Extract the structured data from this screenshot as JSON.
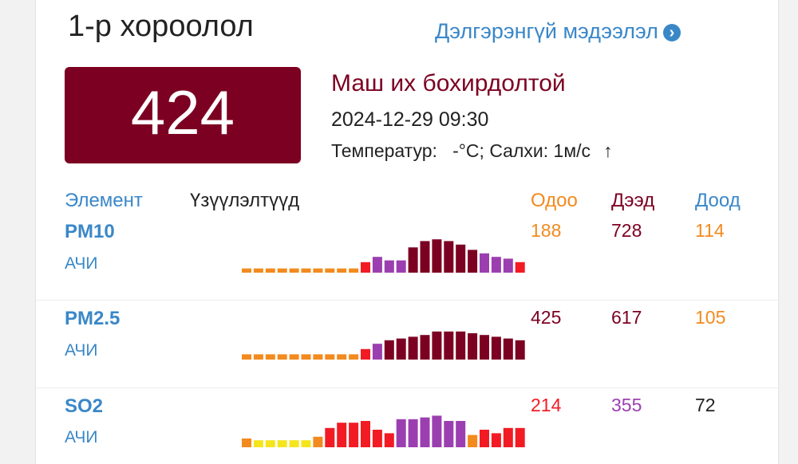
{
  "station": {
    "name": "1-р хороолол",
    "more_label": "Дэлгэрэнгүй мэдээлэл",
    "more_icon": "chevron-right-circle-icon"
  },
  "aqi": {
    "value": "424",
    "status": "Маш их бохирдолтой",
    "timestamp": "2024-12-29 09:30",
    "weather": "Температур:   -°C; Салхи: 1м/с",
    "wind_icon": "arrow-up-icon"
  },
  "table": {
    "headers": {
      "element": "Элемент",
      "measurements": "Үзүүлэлтүүд",
      "current": "Одоо",
      "max": "Дээд",
      "min": "Доод"
    },
    "rows": [
      {
        "name": "PM10",
        "sub": "АЧИ",
        "current": "188",
        "max": "728",
        "min": "114"
      },
      {
        "name": "PM2.5",
        "sub": "АЧИ",
        "current": "425",
        "max": "617",
        "min": "105"
      },
      {
        "name": "SO2",
        "sub": "АЧИ",
        "current": "214",
        "max": "355",
        "min": "72"
      }
    ]
  },
  "colors": {
    "hazardous": "#7c0021",
    "very_unhealthy": "#9b3fb0",
    "unhealthy": "#f21b24",
    "sensitive": "#f28a1e",
    "moderate": "#f5e51c",
    "link": "#3a87c8",
    "current": "#f28a1e",
    "max": "#7c0021",
    "min": "#f28a1e"
  },
  "sparklines": [
    {
      "levels": [
        1,
        1,
        1,
        1,
        1,
        1,
        1,
        1,
        1,
        1,
        2,
        3,
        3,
        3,
        4,
        4,
        4,
        4,
        4,
        4,
        3,
        3,
        3,
        2
      ],
      "fill": [
        0.12,
        0.12,
        0.12,
        0.12,
        0.12,
        0.12,
        0.12,
        0.12,
        0.12,
        0.12,
        0.3,
        0.45,
        0.35,
        0.35,
        0.72,
        0.9,
        0.95,
        0.9,
        0.8,
        0.65,
        0.55,
        0.45,
        0.4,
        0.3
      ]
    },
    {
      "levels": [
        1,
        1,
        1,
        1,
        1,
        1,
        1,
        1,
        1,
        1,
        2,
        3,
        4,
        4,
        4,
        4,
        4,
        4,
        4,
        4,
        4,
        4,
        4,
        4
      ],
      "fill": [
        0.15,
        0.15,
        0.15,
        0.15,
        0.15,
        0.15,
        0.15,
        0.15,
        0.15,
        0.15,
        0.3,
        0.45,
        0.55,
        0.6,
        0.65,
        0.7,
        0.8,
        0.8,
        0.8,
        0.75,
        0.7,
        0.65,
        0.6,
        0.55
      ]
    },
    {
      "levels": [
        1,
        0,
        0,
        0,
        0,
        0,
        1,
        2,
        2,
        2,
        2,
        2,
        2,
        3,
        3,
        3,
        3,
        3,
        3,
        1,
        2,
        2,
        2,
        2
      ],
      "fill": [
        0.25,
        0.2,
        0.2,
        0.2,
        0.2,
        0.2,
        0.3,
        0.55,
        0.7,
        0.7,
        0.75,
        0.5,
        0.4,
        0.8,
        0.8,
        0.85,
        0.9,
        0.75,
        0.75,
        0.35,
        0.5,
        0.4,
        0.55,
        0.55
      ]
    }
  ]
}
